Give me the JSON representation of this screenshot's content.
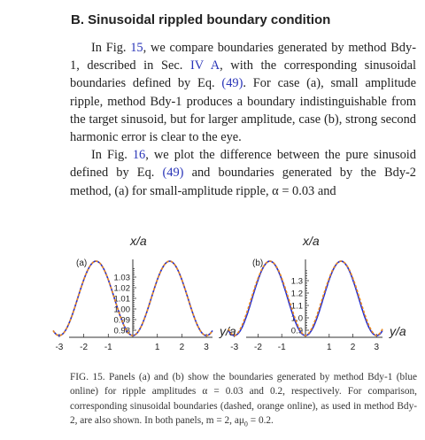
{
  "section": {
    "heading": "B. Sinusoidal rippled boundary condition"
  },
  "paragraphs": [
    {
      "id": "p1",
      "parts": [
        "In Fig. ",
        {
          "link": "15"
        },
        ", we compare boundaries generated by method Bdy-1, described in Sec. ",
        {
          "link": "IV A"
        },
        ", with the corresponding sinusoidal boundaries defined by Eq. ",
        {
          "link": "(49)"
        },
        ". For case (a), small amplitude ripple, method Bdy-1 produces a boundary indistinguishable from the target sinusoid, but for larger amplitude, case (b), strong second harmonic error is clear to the eye."
      ]
    },
    {
      "id": "p2",
      "parts": [
        "In Fig. ",
        {
          "link": "16"
        },
        ", we plot the difference between the pure sinusoid defined by Eq. ",
        {
          "link": "(49)"
        },
        " and boundaries generated by the Bdy-2 method, (a) for small-amplitude ripple, α = 0.03 and"
      ]
    }
  ],
  "figure": {
    "x_axis_label": "y/a",
    "y_axis_label": "x/a",
    "colors": {
      "method_curve": "#1f2bd6",
      "sinusoid_curve": "#e8881e",
      "axis": "#333333"
    },
    "x_ticks": [
      "-3",
      "-2",
      "-1",
      "1",
      "2",
      "3"
    ],
    "panels": [
      {
        "panel_label": "(a)",
        "alpha": 0.03,
        "y_ticks": [
          "0.98",
          "0.99",
          "1.00",
          "1.01",
          "1.02",
          "1.03"
        ]
      },
      {
        "panel_label": "(b)",
        "alpha": 0.2,
        "y_ticks": [
          "0.9",
          "1.0",
          "1.1",
          "1.2",
          "1.3"
        ]
      }
    ]
  },
  "caption": {
    "parts": [
      "FIG. 15. Panels (a) and (b) show the boundaries generated by method Bdy-1 (blue online) for ripple amplitudes α = 0.03 and 0.2, respectively. For comparison, corresponding sinusoidal boundaries (dashed, orange online), as used in method Bdy-2, are also shown. In both panels, m = 2, aμ",
      {
        "sub": "0"
      },
      " = 0.2."
    ]
  }
}
